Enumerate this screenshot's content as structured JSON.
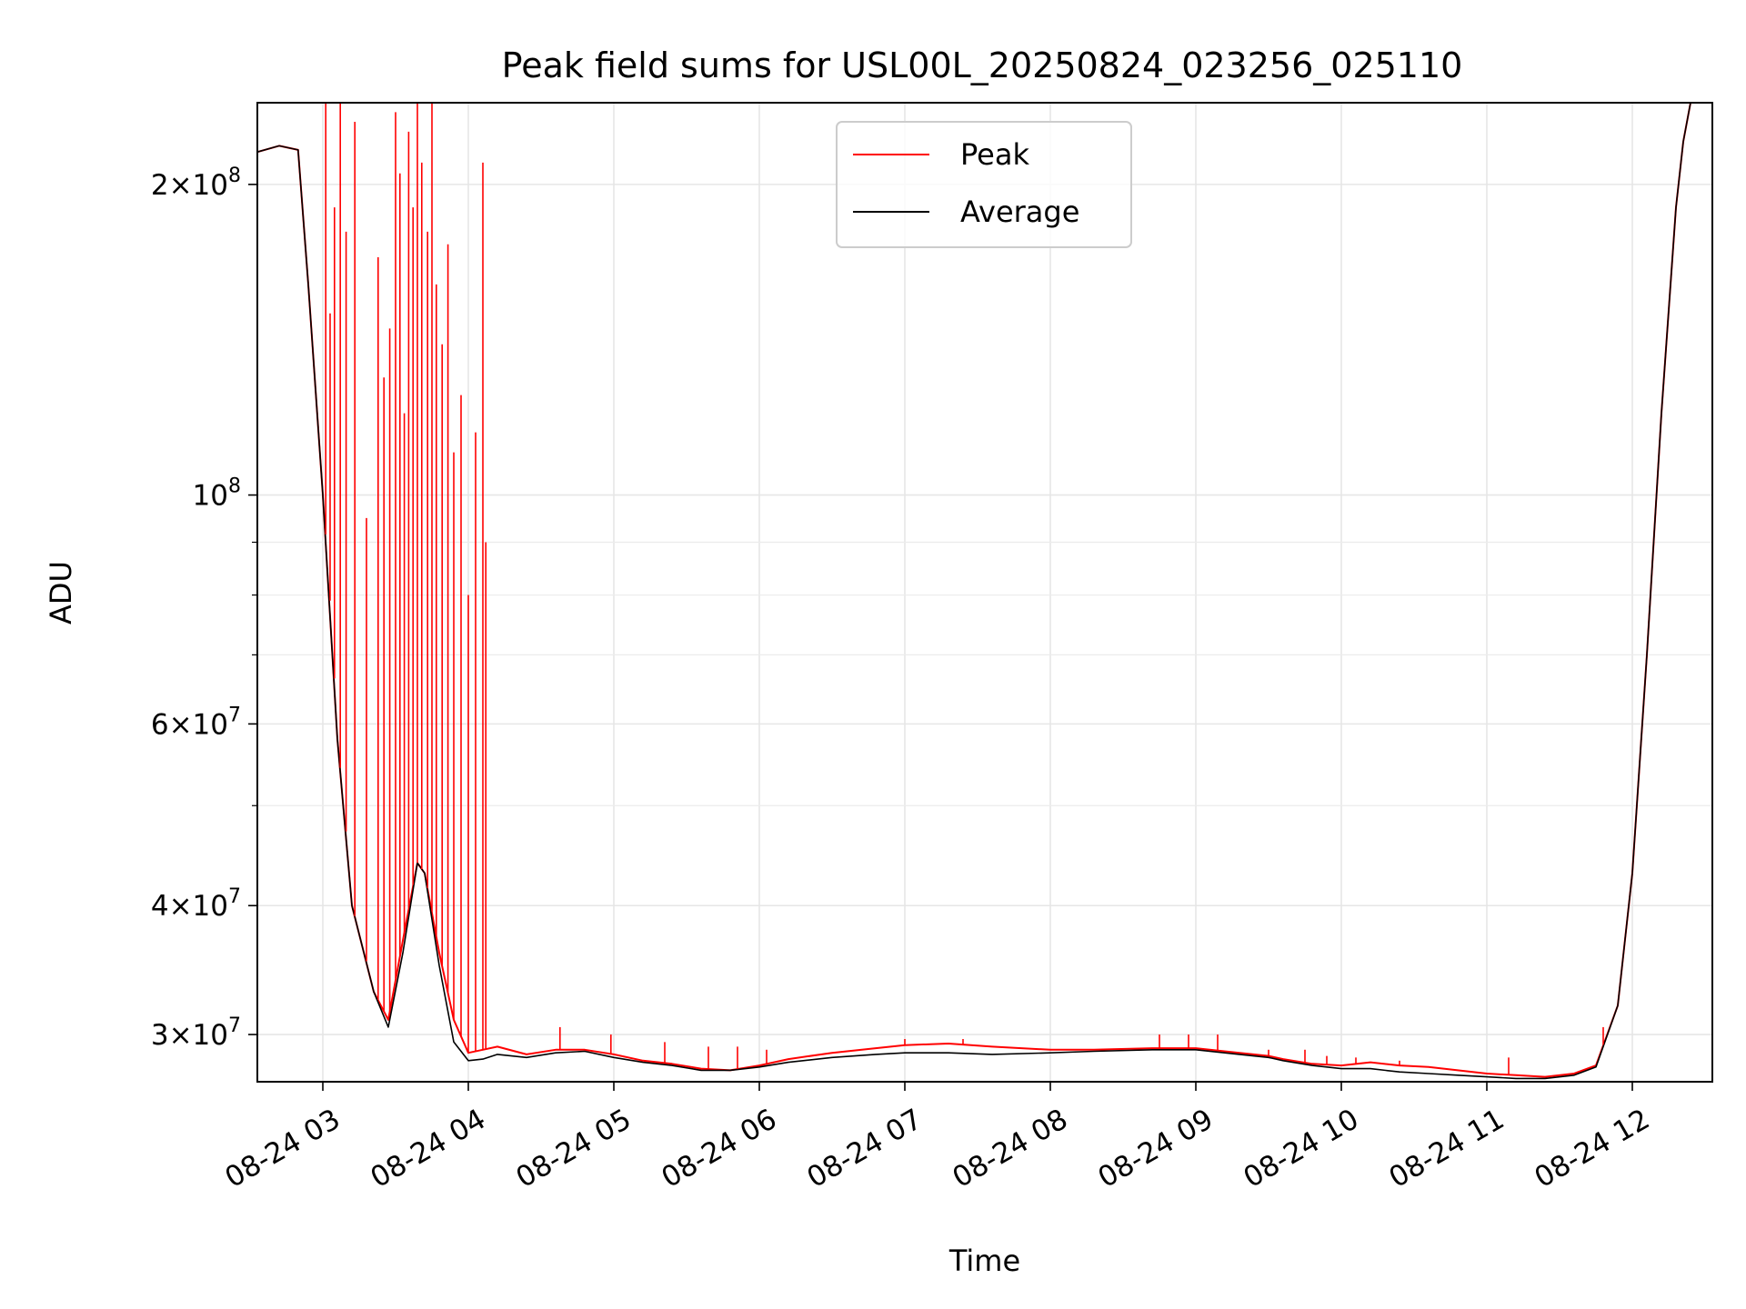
{
  "chart_data": {
    "type": "line",
    "title": "Peak field sums for USL00L_20250824_023256_025110",
    "xlabel": "Time",
    "ylabel": "ADU",
    "x_unit": "hours",
    "xlim": [
      2.55,
      12.55
    ],
    "ylim": [
      27000000,
      240000000
    ],
    "yscale": "log",
    "grid": true,
    "legend_position": "top-center",
    "x_ticks": [
      {
        "value": 3,
        "label": "08-24 03"
      },
      {
        "value": 4,
        "label": "08-24 04"
      },
      {
        "value": 5,
        "label": "08-24 05"
      },
      {
        "value": 6,
        "label": "08-24 06"
      },
      {
        "value": 7,
        "label": "08-24 07"
      },
      {
        "value": 8,
        "label": "08-24 08"
      },
      {
        "value": 9,
        "label": "08-24 09"
      },
      {
        "value": 10,
        "label": "08-24 10"
      },
      {
        "value": 11,
        "label": "08-24 11"
      },
      {
        "value": 12,
        "label": "08-24 12"
      }
    ],
    "y_ticks_major": [
      {
        "value": 30000000,
        "mant": "3",
        "exp": "7"
      },
      {
        "value": 40000000,
        "mant": "4",
        "exp": "7"
      },
      {
        "value": 60000000,
        "mant": "6",
        "exp": "7"
      },
      {
        "value": 100000000,
        "mant": "",
        "exp": "8"
      },
      {
        "value": 200000000,
        "mant": "2",
        "exp": "8"
      }
    ],
    "y_ticks_minor": [
      50000000,
      70000000,
      80000000,
      90000000
    ],
    "series": [
      {
        "name": "Peak",
        "color": "#ff0000",
        "x": [
          2.55,
          2.7,
          2.83,
          2.9,
          3.0,
          3.1,
          3.2,
          3.35,
          3.45,
          3.55,
          3.65,
          3.7,
          3.8,
          3.9,
          4.0,
          4.1,
          4.2,
          4.4,
          4.6,
          4.8,
          5.0,
          5.2,
          5.4,
          5.6,
          5.8,
          6.0,
          6.2,
          6.5,
          6.8,
          7.0,
          7.3,
          7.6,
          8.0,
          8.3,
          8.7,
          9.0,
          9.3,
          9.5,
          9.6,
          9.8,
          10.0,
          10.2,
          10.4,
          10.6,
          10.8,
          11.0,
          11.2,
          11.4,
          11.6,
          11.75,
          11.9,
          12.0,
          12.1,
          12.2,
          12.3,
          12.35,
          12.4,
          12.55
        ],
        "y": [
          215000000,
          218000000,
          216000000,
          160000000,
          100000000,
          58000000,
          40000000,
          33000000,
          31000000,
          37000000,
          44000000,
          43000000,
          36000000,
          31000000,
          28800000,
          29000000,
          29200000,
          28700000,
          29000000,
          29000000,
          28700000,
          28300000,
          28100000,
          27800000,
          27700000,
          28000000,
          28400000,
          28800000,
          29100000,
          29300000,
          29400000,
          29200000,
          29000000,
          29000000,
          29100000,
          29100000,
          28800000,
          28600000,
          28400000,
          28100000,
          28000000,
          28200000,
          28000000,
          27900000,
          27700000,
          27500000,
          27400000,
          27300000,
          27500000,
          28000000,
          32000000,
          43000000,
          70000000,
          120000000,
          190000000,
          220000000,
          240000000,
          240000000
        ],
        "spikes": [
          {
            "x": 3.02,
            "y": 240000000
          },
          {
            "x": 3.05,
            "y": 150000000
          },
          {
            "x": 3.08,
            "y": 190000000
          },
          {
            "x": 3.12,
            "y": 240000000
          },
          {
            "x": 3.16,
            "y": 180000000
          },
          {
            "x": 3.22,
            "y": 230000000
          },
          {
            "x": 3.3,
            "y": 95000000
          },
          {
            "x": 3.38,
            "y": 170000000
          },
          {
            "x": 3.42,
            "y": 130000000
          },
          {
            "x": 3.46,
            "y": 145000000
          },
          {
            "x": 3.5,
            "y": 235000000
          },
          {
            "x": 3.53,
            "y": 205000000
          },
          {
            "x": 3.56,
            "y": 120000000
          },
          {
            "x": 3.59,
            "y": 225000000
          },
          {
            "x": 3.62,
            "y": 190000000
          },
          {
            "x": 3.65,
            "y": 240000000
          },
          {
            "x": 3.68,
            "y": 210000000
          },
          {
            "x": 3.72,
            "y": 180000000
          },
          {
            "x": 3.75,
            "y": 240000000
          },
          {
            "x": 3.78,
            "y": 160000000
          },
          {
            "x": 3.82,
            "y": 140000000
          },
          {
            "x": 3.86,
            "y": 175000000
          },
          {
            "x": 3.9,
            "y": 110000000
          },
          {
            "x": 3.95,
            "y": 125000000
          },
          {
            "x": 4.0,
            "y": 80000000
          },
          {
            "x": 4.05,
            "y": 115000000
          },
          {
            "x": 4.1,
            "y": 210000000
          },
          {
            "x": 4.12,
            "y": 90000000
          },
          {
            "x": 4.63,
            "y": 30500000
          },
          {
            "x": 4.98,
            "y": 30000000
          },
          {
            "x": 5.35,
            "y": 29500000
          },
          {
            "x": 5.65,
            "y": 29200000
          },
          {
            "x": 5.85,
            "y": 29200000
          },
          {
            "x": 6.05,
            "y": 29000000
          },
          {
            "x": 7.0,
            "y": 29700000
          },
          {
            "x": 7.4,
            "y": 29700000
          },
          {
            "x": 8.3,
            "y": 29000000
          },
          {
            "x": 8.75,
            "y": 30000000
          },
          {
            "x": 8.95,
            "y": 30000000
          },
          {
            "x": 9.15,
            "y": 30000000
          },
          {
            "x": 9.5,
            "y": 29000000
          },
          {
            "x": 9.75,
            "y": 29000000
          },
          {
            "x": 9.9,
            "y": 28600000
          },
          {
            "x": 10.1,
            "y": 28500000
          },
          {
            "x": 10.4,
            "y": 28300000
          },
          {
            "x": 11.15,
            "y": 28500000
          },
          {
            "x": 11.8,
            "y": 30500000
          }
        ]
      },
      {
        "name": "Average",
        "color": "#000000",
        "x": [
          2.55,
          2.7,
          2.83,
          2.9,
          3.0,
          3.1,
          3.2,
          3.35,
          3.45,
          3.55,
          3.65,
          3.7,
          3.8,
          3.9,
          4.0,
          4.1,
          4.2,
          4.4,
          4.6,
          4.8,
          5.0,
          5.2,
          5.4,
          5.6,
          5.8,
          6.0,
          6.2,
          6.5,
          6.8,
          7.0,
          7.3,
          7.6,
          8.0,
          8.3,
          8.7,
          9.0,
          9.3,
          9.5,
          9.6,
          9.8,
          10.0,
          10.2,
          10.4,
          10.6,
          10.8,
          11.0,
          11.2,
          11.4,
          11.6,
          11.75,
          11.9,
          12.0,
          12.1,
          12.2,
          12.3,
          12.35,
          12.4,
          12.55
        ],
        "y": [
          215000000,
          218000000,
          216000000,
          160000000,
          100000000,
          58000000,
          40000000,
          33000000,
          30500000,
          36000000,
          44000000,
          43000000,
          35000000,
          29500000,
          28300000,
          28400000,
          28700000,
          28500000,
          28800000,
          28900000,
          28500000,
          28200000,
          28000000,
          27700000,
          27700000,
          27900000,
          28200000,
          28500000,
          28700000,
          28800000,
          28800000,
          28700000,
          28800000,
          28900000,
          29000000,
          29000000,
          28700000,
          28500000,
          28300000,
          28000000,
          27800000,
          27800000,
          27600000,
          27500000,
          27400000,
          27300000,
          27200000,
          27200000,
          27400000,
          27900000,
          32000000,
          43000000,
          70000000,
          120000000,
          190000000,
          220000000,
          240000000,
          240000000
        ]
      }
    ]
  }
}
